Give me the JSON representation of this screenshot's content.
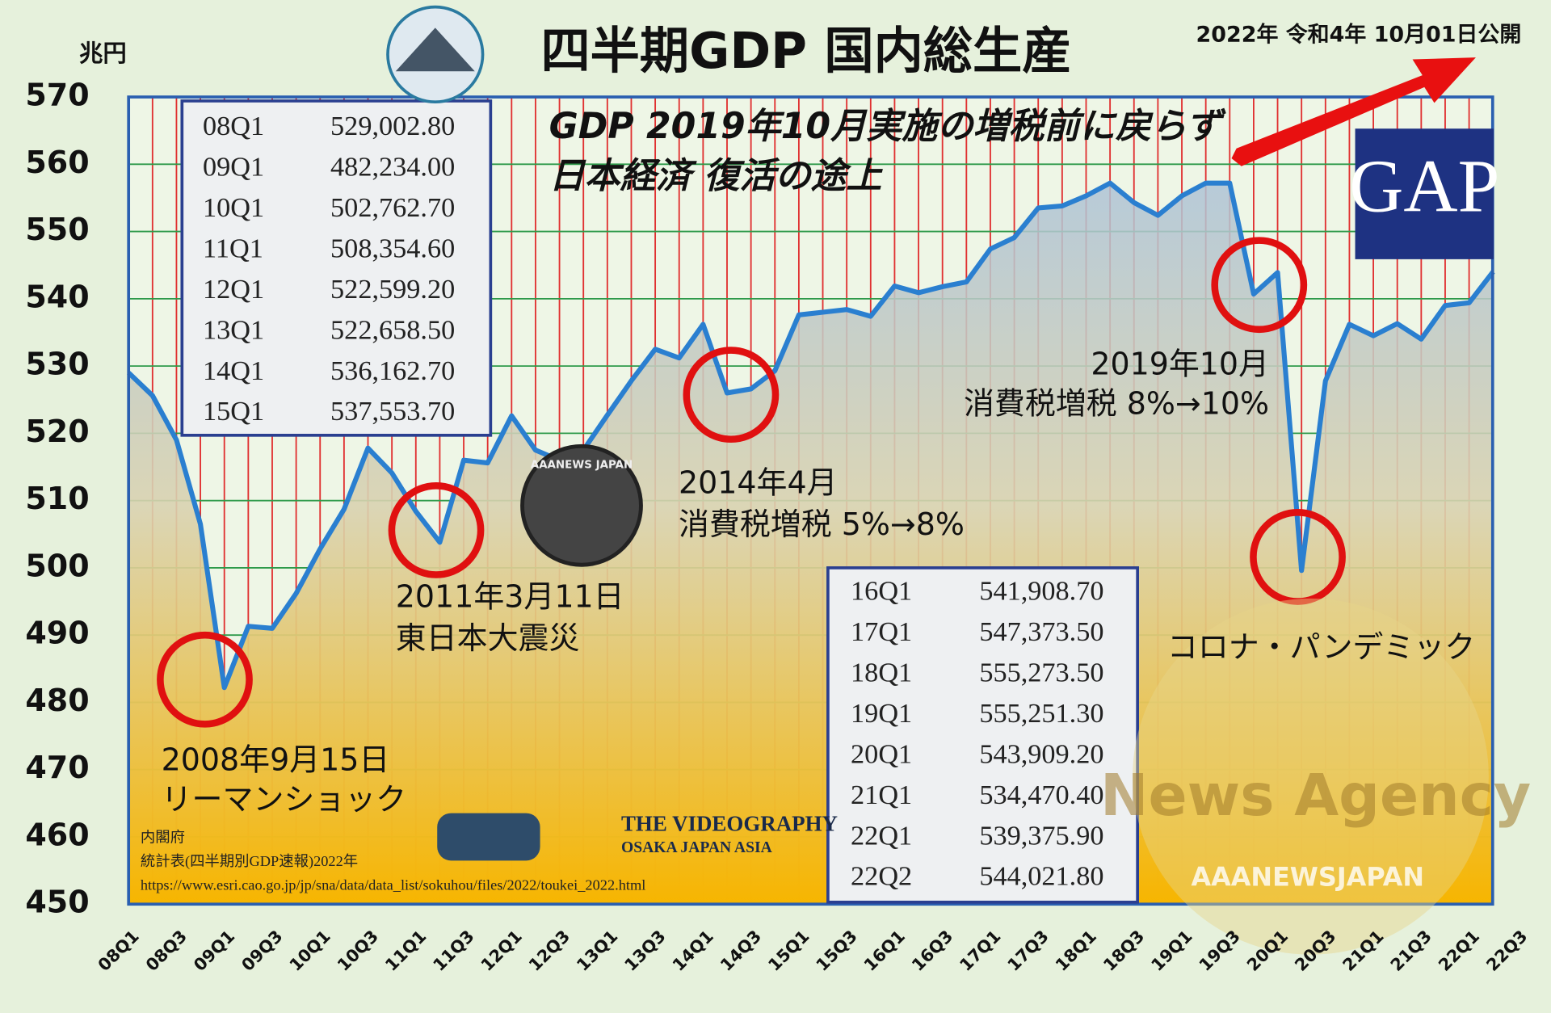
{
  "chart_data": {
    "type": "line",
    "title": "四半期GDP 国内総生産",
    "subtitle": "2022年 令和4年 10月01日公開",
    "y_label": "兆円",
    "headline": [
      "GDP 2019年10月実施の増税前に戻らず",
      "日本経済 復活の途上"
    ],
    "categories": [
      "08Q1",
      null,
      "08Q3",
      null,
      "09Q1",
      null,
      "09Q3",
      null,
      "10Q1",
      null,
      "10Q3",
      null,
      "11Q1",
      null,
      "11Q3",
      null,
      "12Q1",
      null,
      "12Q3",
      null,
      "13Q1",
      null,
      "13Q3",
      null,
      "14Q1",
      null,
      "14Q3",
      null,
      "15Q1",
      null,
      "15Q3",
      null,
      "16Q1",
      null,
      "16Q3",
      null,
      "17Q1",
      null,
      "17Q3",
      null,
      "18Q1",
      null,
      "18Q3",
      null,
      "19Q1",
      null,
      "19Q3",
      null,
      "20Q1",
      null,
      "20Q3",
      null,
      "21Q1",
      null,
      "21Q3",
      null,
      "22Q1",
      null,
      "22Q3"
    ],
    "series": [
      {
        "name": "GDP",
        "color": "#2a7fd0",
        "values": [
          529.0,
          525.6,
          519.0,
          506.5,
          482.2,
          491.3,
          491.0,
          496.2,
          502.8,
          508.7,
          517.8,
          514.1,
          508.4,
          503.8,
          516.0,
          515.6,
          522.6,
          517.5,
          516.0,
          517.5,
          522.7,
          527.8,
          532.5,
          531.2,
          536.2,
          526.0,
          526.6,
          529.3,
          537.6,
          538.0,
          538.4,
          537.4,
          541.9,
          540.9,
          541.8,
          542.5,
          547.4,
          549.1,
          553.5,
          553.8,
          555.3,
          557.2,
          554.3,
          552.4,
          555.3,
          557.2,
          557.2,
          540.7,
          543.9,
          499.6,
          527.8,
          536.2,
          534.5,
          536.3,
          534.0,
          539.0,
          539.4,
          544.0,
          null
        ]
      }
    ],
    "ylim": [
      450,
      570
    ],
    "yticks": [
      450,
      460,
      470,
      480,
      490,
      500,
      510,
      520,
      530,
      540,
      550,
      560,
      570
    ],
    "grid": true,
    "grid_color": "#2e9a4a",
    "x_grid_color": "#e03030",
    "annotations": [
      "2008年9月15日",
      "リーマンショック",
      "2011年3月11日",
      "東日本大震災",
      "2014年4月",
      "消費税増税 5%→8%",
      "2019年10月",
      "消費税増税 8%→10%",
      "コロナ・パンデミック"
    ],
    "table_1": [
      [
        "08Q1",
        "529,002.80"
      ],
      [
        "09Q1",
        "482,234.00"
      ],
      [
        "10Q1",
        "502,762.70"
      ],
      [
        "11Q1",
        "508,354.60"
      ],
      [
        "12Q1",
        "522,599.20"
      ],
      [
        "13Q1",
        "522,658.50"
      ],
      [
        "14Q1",
        "536,162.70"
      ],
      [
        "15Q1",
        "537,553.70"
      ]
    ],
    "table_2": [
      [
        "16Q1",
        "541,908.70"
      ],
      [
        "17Q1",
        "547,373.50"
      ],
      [
        "18Q1",
        "555,273.50"
      ],
      [
        "19Q1",
        "555,251.30"
      ],
      [
        "20Q1",
        "543,909.20"
      ],
      [
        "21Q1",
        "534,470.40"
      ],
      [
        "22Q1",
        "539,375.90"
      ],
      [
        "22Q2",
        "544,021.80"
      ]
    ],
    "source": [
      "内閣府",
      "統計表(四半期別GDP速報)2022年",
      "https://www.esri.cao.go.jp/jp/sna/data/data_list/sokuhou/files/2022/toukei_2022.html"
    ],
    "logos": [
      "THE VIDEOGRAPHY",
      "OSAKA JAPAN ASIA",
      "AAANEWS JAPAN",
      "GAP",
      "News Agency",
      "AAANEWSJAPAN"
    ]
  }
}
